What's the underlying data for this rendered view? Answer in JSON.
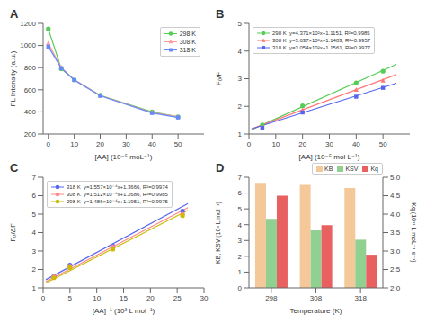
{
  "chart_data": [
    {
      "type": "line",
      "title": "A",
      "xlabel": "[AA] (10⁻⁵ moL⁻¹)",
      "ylabel": "FL Intensity (a.u.)",
      "x": [
        0,
        5,
        10,
        20,
        40,
        50
      ],
      "series": [
        {
          "name": "298 K",
          "color": "#55cc55",
          "marker": "circle",
          "values": [
            1150,
            790,
            690,
            550,
            400,
            355
          ]
        },
        {
          "name": "308 K",
          "color": "#ff9999",
          "marker": "triangle",
          "values": [
            1020,
            800,
            690,
            548,
            395,
            355
          ]
        },
        {
          "name": "318 K",
          "color": "#6688ff",
          "marker": "square",
          "values": [
            990,
            795,
            688,
            545,
            390,
            350
          ]
        }
      ],
      "xlim": [
        -2,
        60
      ],
      "xticks": [
        0,
        10,
        20,
        30,
        40,
        50
      ],
      "ylim": [
        200,
        1200
      ],
      "yticks": [
        200,
        400,
        600,
        800,
        1000,
        1200
      ],
      "legend": "upper right",
      "grid": false
    },
    {
      "type": "scatter",
      "title": "B",
      "xlabel": "[AA] (10⁻⁵ mol L⁻¹)",
      "ylabel": "F₀/F",
      "x": [
        5,
        20,
        40,
        50
      ],
      "series": [
        {
          "name": "298 K  y=4.371×10²x+1.1151, R²=0.9985",
          "color": "#55cc55",
          "marker": "circle",
          "values": [
            1.33,
            2.02,
            2.85,
            3.27
          ],
          "fit": {
            "x": [
              1,
              55
            ],
            "values": [
              1.15881,
              3.51915
            ]
          }
        },
        {
          "name": "308 K  y=3.637×10²x+1.1483, R²=0.9957",
          "color": "#ff7777",
          "marker": "triangle",
          "values": [
            1.27,
            1.87,
            2.6,
            2.93
          ],
          "fit": {
            "x": [
              1,
              55
            ],
            "values": [
              1.18467,
              3.14865
            ]
          }
        },
        {
          "name": "318 K  y=3.054×10²x+1.1561, R²=0.9977",
          "color": "#5566ee",
          "marker": "square",
          "values": [
            1.22,
            1.78,
            2.35,
            2.67
          ],
          "fit": {
            "x": [
              1,
              55
            ],
            "values": [
              1.18664,
              2.8358
            ]
          }
        }
      ],
      "xlim": [
        0,
        60
      ],
      "xticks": [
        0,
        10,
        20,
        30,
        40,
        50
      ],
      "ylim": [
        1,
        5
      ],
      "yticks": [
        1,
        2,
        3,
        4,
        5
      ],
      "legend": "upper left",
      "grid": false
    },
    {
      "type": "scatter",
      "title": "C",
      "xlabel": "[AA]⁻¹ (10³ L mol⁻¹)",
      "ylabel": "F₀/ΔF",
      "x": [
        2,
        5,
        13,
        26
      ],
      "series": [
        {
          "name": "318 K  y=1.557×10⁻⁴x+1.3666, R²=0.9974",
          "color": "#5566ee",
          "marker": "circle",
          "values": [
            1.63,
            2.24,
            3.28,
            5.17
          ],
          "fit": {
            "x": [
              0.5,
              27
            ],
            "values": [
              1.44445,
              5.5705
            ]
          }
        },
        {
          "name": "308 K  y=1.512×10⁻⁴x+1.2686, R²=0.9985",
          "color": "#ff8888",
          "marker": "circle",
          "values": [
            1.6,
            2.18,
            3.23,
            5.0
          ],
          "fit": {
            "x": [
              0.5,
              27
            ],
            "values": [
              1.3442,
              5.351
            ]
          }
        },
        {
          "name": "298 K  y=1.486×10⁻⁴x+1.1951, R²=0.9975",
          "color": "#ccbb00",
          "marker": "circle",
          "values": [
            1.55,
            2.1,
            3.1,
            4.92
          ],
          "fit": {
            "x": [
              0.5,
              27
            ],
            "values": [
              1.2694,
              5.2073
            ]
          }
        }
      ],
      "xlim": [
        0,
        30
      ],
      "xticks": [
        0,
        5,
        10,
        15,
        20,
        25,
        30
      ],
      "ylim": [
        1,
        7
      ],
      "yticks": [
        1,
        2,
        3,
        4,
        5,
        6,
        7
      ],
      "legend": "upper left",
      "grid": false
    },
    {
      "type": "bar",
      "title": "D",
      "xlabel": "Temperature (K)",
      "ylabel": "KB, KSV (10³ L mol⁻¹)",
      "y2label": "Kq (10¹¹ L moL⁻¹ s⁻¹)",
      "categories": [
        "298",
        "308",
        "318"
      ],
      "series": [
        {
          "name": "KB",
          "color": "#f5c89a",
          "values": [
            6.65,
            6.52,
            6.32
          ]
        },
        {
          "name": "KSV",
          "color": "#90d090",
          "values": [
            4.37,
            3.64,
            3.05
          ]
        },
        {
          "name": "Kq",
          "color": "#e86060",
          "values": [
            4.5,
            3.7,
            2.9
          ],
          "axis": "y2"
        }
      ],
      "ylim": [
        0,
        7
      ],
      "yticks": [
        0,
        1,
        2,
        3,
        4,
        5,
        6,
        7
      ],
      "y2lim": [
        2,
        5
      ],
      "y2ticks": [
        {
          "value": 2,
          "label": "2.0"
        },
        2.5,
        {
          "value": 3,
          "label": "3.0"
        },
        3.5,
        {
          "value": 4,
          "label": "4.0"
        },
        4.5,
        {
          "value": 5,
          "label": "5.0"
        }
      ],
      "legend": "upper right",
      "grid": false
    }
  ]
}
